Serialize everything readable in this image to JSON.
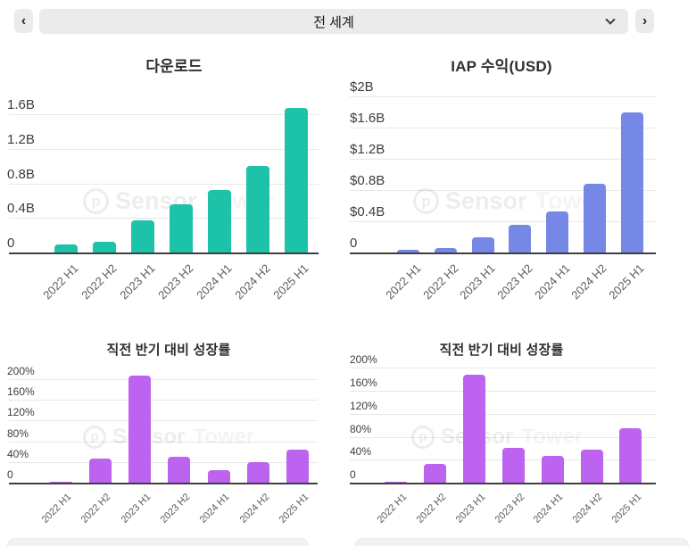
{
  "header": {
    "prev_icon": "‹",
    "next_icon": "›",
    "region_selector": {
      "value": "전 세계"
    }
  },
  "watermark": {
    "logo_letter": "p",
    "first": "Sensor",
    "second": "Tower"
  },
  "chart_data": [
    {
      "type": "bar",
      "title": "다운로드",
      "categories": [
        "2022 H1",
        "2022 H2",
        "2023 H1",
        "2023 H2",
        "2024 H1",
        "2024 H2",
        "2025 H1"
      ],
      "values": [
        0.09,
        0.12,
        0.37,
        0.56,
        0.72,
        1.0,
        1.68
      ],
      "unit": "billions",
      "xlabel": "",
      "ylabel": "",
      "yticks": {
        "values": [
          0,
          0.4,
          0.8,
          1.2,
          1.6
        ],
        "labels": [
          "0",
          "0.4B",
          "0.8B",
          "1.2B",
          "1.6B"
        ]
      },
      "ylim": [
        0,
        1.8
      ],
      "grid": true,
      "legend": "none",
      "bar_color": "#1dc3a8"
    },
    {
      "type": "bar",
      "title": "IAP 수익(USD)",
      "categories": [
        "2022 H1",
        "2022 H2",
        "2023 H1",
        "2023 H2",
        "2024 H1",
        "2024 H2",
        "2025 H1"
      ],
      "values": [
        0.04,
        0.055,
        0.2,
        0.36,
        0.53,
        0.88,
        1.8
      ],
      "unit": "billions USD",
      "xlabel": "",
      "ylabel": "",
      "yticks": {
        "values": [
          0,
          0.4,
          0.8,
          1.2,
          1.6,
          2
        ],
        "labels": [
          "0",
          "$0.4B",
          "$0.8B",
          "$1.2B",
          "$1.6B",
          "$2B"
        ]
      },
      "ylim": [
        0,
        2
      ],
      "grid": true,
      "legend": "none",
      "bar_color": "#7688e5"
    },
    {
      "type": "bar",
      "title": "직전 반기 대비 성장률",
      "categories": [
        "2022 H1",
        "2022 H2",
        "2023 H1",
        "2023 H2",
        "2024 H1",
        "2024 H2",
        "2025 H1"
      ],
      "values": [
        2,
        47,
        207,
        50,
        24,
        39,
        64
      ],
      "unit": "percent",
      "xlabel": "",
      "ylabel": "",
      "yticks": {
        "values": [
          0,
          40,
          80,
          120,
          160,
          200
        ],
        "labels": [
          "0",
          "40%",
          "80%",
          "120%",
          "160%",
          "200%"
        ]
      },
      "ylim": [
        0,
        217
      ],
      "grid": true,
      "legend": "none",
      "bar_color": "#bc63ef"
    },
    {
      "type": "bar",
      "title": "직전 반기 대비 성장률",
      "categories": [
        "2022 H1",
        "2022 H2",
        "2023 H1",
        "2023 H2",
        "2024 H1",
        "2024 H2",
        "2025 H1"
      ],
      "values": [
        1.5,
        33,
        188,
        61,
        47,
        58,
        95
      ],
      "unit": "percent",
      "xlabel": "",
      "ylabel": "",
      "yticks": {
        "values": [
          0,
          40,
          80,
          120,
          160,
          200
        ],
        "labels": [
          "0",
          "40%",
          "80%",
          "120%",
          "160%",
          "200%"
        ]
      },
      "ylim": [
        0,
        205
      ],
      "grid": true,
      "legend": "none",
      "bar_color": "#bc63ef"
    }
  ]
}
